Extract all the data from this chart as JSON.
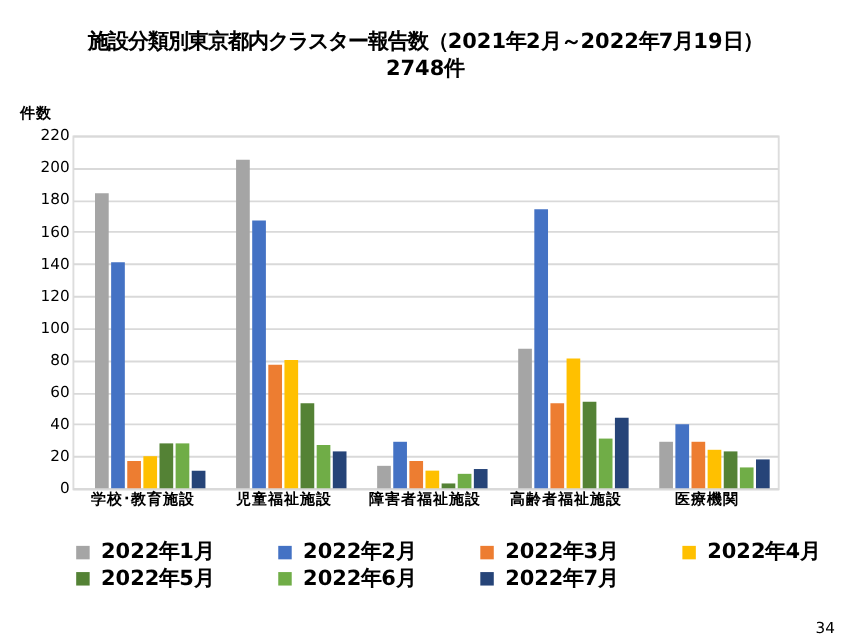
{
  "chart_data": {
    "type": "bar",
    "title": "施設分類別東京都内クラスター報告数（2021年2月～2022年7月19日）",
    "subtitle": "2748件",
    "ylabel": "件数",
    "categories": [
      "学校･教育施設",
      "児童福祉施設",
      "障害者福祉施設",
      "高齢者福祉施設",
      "医療機関"
    ],
    "series": [
      {
        "name": "2022年1月",
        "color": "#a5a5a5",
        "values": [
          184,
          205,
          14,
          87,
          29
        ]
      },
      {
        "name": "2022年2月",
        "color": "#4472c4",
        "values": [
          141,
          167,
          29,
          174,
          40
        ]
      },
      {
        "name": "2022年3月",
        "color": "#ed7d31",
        "values": [
          17,
          77,
          17,
          53,
          29
        ]
      },
      {
        "name": "2022年4月",
        "color": "#ffc000",
        "values": [
          20,
          80,
          11,
          81,
          24
        ]
      },
      {
        "name": "2022年5月",
        "color": "#548235",
        "values": [
          28,
          53,
          3,
          54,
          23
        ]
      },
      {
        "name": "2022年6月",
        "color": "#70ad47",
        "values": [
          28,
          27,
          9,
          31,
          13
        ]
      },
      {
        "name": "2022年7月",
        "color": "#264478",
        "values": [
          11,
          23,
          12,
          44,
          18
        ]
      }
    ],
    "ylim": [
      0,
      220
    ],
    "yticks": [
      0,
      20,
      40,
      60,
      80,
      100,
      120,
      140,
      160,
      180,
      200,
      220
    ],
    "grid": "y",
    "legend": "bottom",
    "annotations": [
      "34"
    ]
  }
}
